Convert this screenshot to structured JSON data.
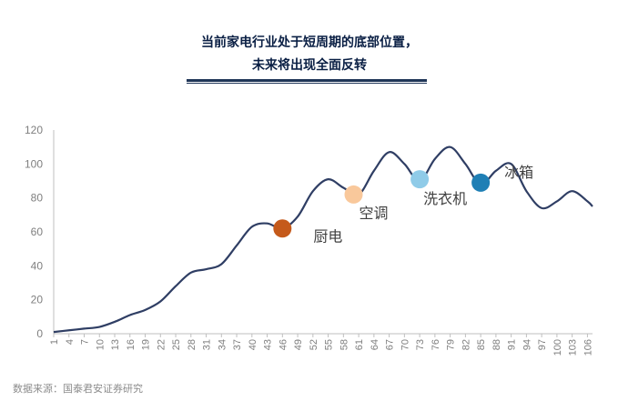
{
  "header": {
    "title_line1": "当前家电行业处于短周期的底部位置，",
    "title_line2": "未来将出现全面反转"
  },
  "footer": {
    "source": "数据来源：国泰君安证券研究"
  },
  "colors": {
    "line": "#2f3e64",
    "axis": "#bfbfbf",
    "tick_text": "#7f7f7f",
    "title": "#0a1f44"
  },
  "chart_data": {
    "type": "line",
    "ylim": [
      0,
      120
    ],
    "yticks": [
      0,
      20,
      40,
      60,
      80,
      100,
      120
    ],
    "xlim": [
      1,
      107
    ],
    "xticks": [
      1,
      4,
      7,
      10,
      13,
      16,
      19,
      22,
      25,
      28,
      31,
      34,
      37,
      40,
      43,
      46,
      49,
      52,
      55,
      58,
      61,
      64,
      67,
      70,
      73,
      76,
      79,
      82,
      85,
      88,
      91,
      94,
      97,
      100,
      103,
      106
    ],
    "series": [
      {
        "x": [
          1,
          4,
          7,
          10,
          13,
          16,
          19,
          22,
          25,
          28,
          31,
          34,
          37,
          40,
          43,
          46,
          49,
          52,
          55,
          58,
          61,
          64,
          67,
          70,
          73,
          76,
          79,
          82,
          85,
          88,
          91,
          94,
          97,
          100,
          103,
          106,
          107
        ],
        "y": [
          1,
          2,
          3,
          4,
          7,
          11,
          14,
          19,
          28,
          36,
          38,
          41,
          52,
          63,
          65,
          62,
          69,
          84,
          91,
          86,
          82,
          96,
          107,
          100,
          90,
          103,
          110,
          100,
          88,
          96,
          100,
          84,
          74,
          78,
          84,
          78,
          75
        ]
      }
    ],
    "markers": [
      {
        "label": "厨电",
        "x": 46,
        "y": 62,
        "color": "#c55a1b"
      },
      {
        "label": "空调",
        "x": 60,
        "y": 82,
        "color": "#f9c89b"
      },
      {
        "label": "洗衣机",
        "x": 73,
        "y": 91,
        "color": "#8fcbe8"
      },
      {
        "label": "冰箱",
        "x": 85,
        "y": 89,
        "color": "#1f7fb5"
      }
    ]
  }
}
